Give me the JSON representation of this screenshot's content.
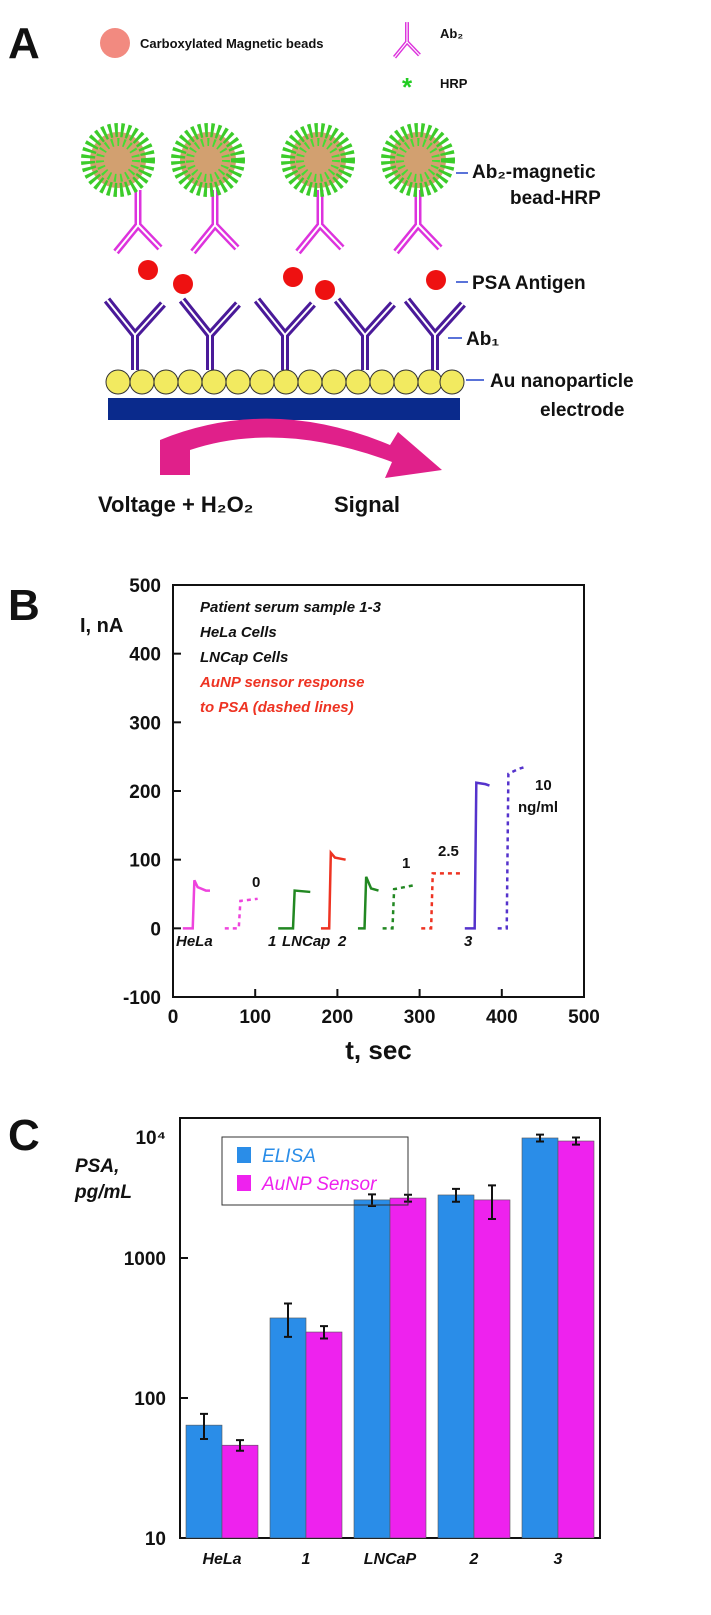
{
  "panel_labels": [
    "A",
    "B",
    "C"
  ],
  "diagram": {
    "legend": {
      "beads": "Carboxylated Magnetic beads",
      "ab2": "Ab₂",
      "hrp": "HRP"
    },
    "labels": {
      "conjugate": [
        "Ab₂-magnetic",
        "bead-HRP"
      ],
      "antigen": "PSA Antigen",
      "ab1": "Ab₁",
      "electrode": [
        "Au nanoparticle",
        "electrode"
      ]
    },
    "input": "Voltage + H₂O₂",
    "output": "Signal"
  },
  "chart_data": [
    {
      "type": "line",
      "ylabel": "I, nA",
      "xlabel": "t, sec",
      "xlim": [
        0,
        500
      ],
      "xticks": [
        0,
        100,
        200,
        300,
        400,
        500
      ],
      "ylim": [
        -100,
        500
      ],
      "yticks": [
        -100,
        0,
        100,
        200,
        300,
        400,
        500
      ],
      "notes": [
        "Patient serum sample 1-3",
        "HeLa Cells",
        "LNCap Cells"
      ],
      "red_notes": [
        "AuNP sensor response",
        "to PSA (dashed lines)"
      ],
      "red_color": "#ee3322",
      "labels": [
        "HeLa",
        "0",
        "1",
        "LNCap",
        "2",
        "1",
        "2.5",
        "3",
        "10",
        "ng/ml"
      ],
      "series": [
        {
          "color": "#ee44dd",
          "dashed": false,
          "x": [
            12,
            24,
            26,
            30,
            40,
            45
          ],
          "values": [
            0,
            0,
            70,
            60,
            55,
            55
          ]
        },
        {
          "color": "#ee44dd",
          "dashed": true,
          "x": [
            63,
            80,
            82,
            103
          ],
          "values": [
            0,
            0,
            40,
            43
          ]
        },
        {
          "color": "#228822",
          "dashed": false,
          "x": [
            128,
            146,
            148,
            167
          ],
          "values": [
            0,
            0,
            55,
            53
          ]
        },
        {
          "color": "#ee3322",
          "dashed": false,
          "x": [
            180,
            190,
            192,
            197,
            210
          ],
          "values": [
            0,
            0,
            110,
            103,
            100
          ]
        },
        {
          "color": "#228822",
          "dashed": false,
          "x": [
            225,
            233,
            235,
            241,
            250
          ],
          "values": [
            0,
            0,
            75,
            58,
            55
          ]
        },
        {
          "color": "#228822",
          "dashed": true,
          "x": [
            255,
            267,
            269,
            294
          ],
          "values": [
            0,
            0,
            57,
            63
          ]
        },
        {
          "color": "#ee3322",
          "dashed": true,
          "x": [
            302,
            314,
            316,
            350
          ],
          "values": [
            0,
            0,
            80,
            80
          ]
        },
        {
          "color": "#5533cc",
          "dashed": false,
          "x": [
            355,
            367,
            369,
            380,
            385
          ],
          "values": [
            0,
            0,
            212,
            210,
            208
          ]
        },
        {
          "color": "#5533cc",
          "dashed": true,
          "x": [
            395,
            406,
            408,
            420,
            428
          ],
          "values": [
            0,
            0,
            225,
            232,
            235
          ]
        }
      ]
    },
    {
      "type": "bar",
      "log_scale": true,
      "ylabel": [
        "PSA,",
        "pg/mL"
      ],
      "categories": [
        "HeLa",
        "1",
        "LNCaP",
        "2",
        "3"
      ],
      "ylim": [
        10,
        10000
      ],
      "yticks": [
        10,
        100,
        1000,
        {
          "value": 10000,
          "label": "10⁴"
        }
      ],
      "legend": "upper left",
      "series": [
        {
          "name": "ELISA",
          "color": "#2a8de8",
          "values": [
            64,
            373,
            2600,
            2820,
            7200
          ],
          "errors": [
            13,
            100,
            250,
            300,
            400
          ]
        },
        {
          "name": "AuNP Sensor",
          "color": "#ee22ee",
          "values": [
            46,
            296,
            2680,
            2600,
            6850
          ],
          "errors": [
            4,
            30,
            150,
            700,
            400
          ]
        }
      ]
    }
  ]
}
